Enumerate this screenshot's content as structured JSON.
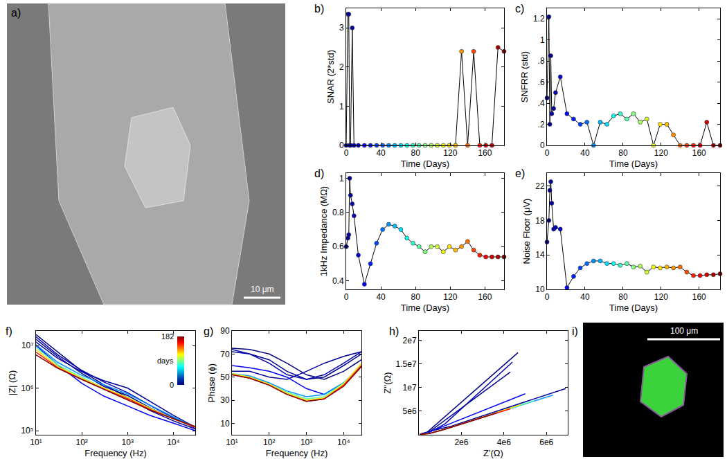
{
  "chart_data": [
    {
      "panel": "b)",
      "type": "line",
      "x_label": "Time (Days)",
      "y_label": "SNAR (2*std)",
      "x": [
        0,
        2,
        3,
        4,
        5,
        7,
        9,
        14,
        21,
        28,
        35,
        42,
        49,
        56,
        63,
        70,
        77,
        84,
        91,
        98,
        105,
        112,
        119,
        126,
        133,
        140,
        147,
        154,
        161,
        168,
        175,
        182
      ],
      "values": [
        0,
        3.35,
        3.35,
        0,
        0,
        3.0,
        0,
        0,
        0,
        0,
        0,
        0,
        0,
        0,
        0,
        0,
        0,
        0,
        0,
        0,
        0,
        0,
        0,
        0,
        2.4,
        0,
        2.4,
        0,
        0,
        0,
        2.5,
        2.4
      ],
      "color": "#000000",
      "marker": "circle",
      "colors": [
        "#000080",
        "#00008b",
        "#000090",
        "#000096",
        "#00009c",
        "#0000a7",
        "#0000b2",
        "#0000ce",
        "#0000f5",
        "#001dff",
        "#0045ff",
        "#006cff",
        "#0093ff",
        "#00baff",
        "#00e1ff",
        "#0afff5",
        "#31ffce",
        "#58ffa7",
        "#80ff80",
        "#a7ff58",
        "#ceff31",
        "#f5ff0a",
        "#ffe100",
        "#ffba00",
        "#ff9300",
        "#ff6c00",
        "#ff4500",
        "#ff1d00",
        "#f50000",
        "#ce0000",
        "#a70000",
        "#800000"
      ],
      "xlim": [
        0,
        182
      ],
      "xticks": [
        0,
        40,
        80,
        120,
        160
      ],
      "ylim": [
        0,
        3.5
      ],
      "yticks": [
        0,
        1,
        2,
        3
      ]
    },
    {
      "panel": "c)",
      "type": "line",
      "x_label": "Time (Days)",
      "y_label": "SNFRR (std)",
      "x": [
        0,
        2,
        3,
        4,
        5,
        7,
        9,
        14,
        21,
        28,
        35,
        42,
        49,
        56,
        63,
        70,
        77,
        84,
        91,
        98,
        105,
        112,
        119,
        126,
        133,
        140,
        147,
        154,
        161,
        168,
        175,
        182
      ],
      "values": [
        0.45,
        1.22,
        0.2,
        0.85,
        0.3,
        0.35,
        0.5,
        0.65,
        0.3,
        0.25,
        0.2,
        0.22,
        0,
        0.22,
        0.2,
        0.28,
        0.3,
        0.25,
        0.3,
        0.22,
        0.25,
        0,
        0.2,
        0.2,
        0.1,
        0,
        0,
        0,
        0,
        0.22,
        0,
        0
      ],
      "color": "#000000",
      "marker": "circle",
      "colors": [
        "#000080",
        "#00008b",
        "#000090",
        "#000096",
        "#00009c",
        "#0000a7",
        "#0000b2",
        "#0000ce",
        "#0000f5",
        "#001dff",
        "#0045ff",
        "#006cff",
        "#0093ff",
        "#00baff",
        "#00e1ff",
        "#0afff5",
        "#31ffce",
        "#58ffa7",
        "#80ff80",
        "#a7ff58",
        "#ceff31",
        "#f5ff0a",
        "#ffe100",
        "#ffba00",
        "#ff9300",
        "#ff6c00",
        "#ff4500",
        "#ff1d00",
        "#f50000",
        "#ce0000",
        "#a70000",
        "#800000"
      ],
      "xlim": [
        0,
        182
      ],
      "xticks": [
        0,
        40,
        80,
        120,
        160
      ],
      "ylim": [
        0,
        1.3
      ],
      "yticks": [
        0,
        {
          "value": 0.2,
          "label": ".2"
        },
        {
          "value": 0.4,
          "label": ".4"
        },
        {
          "value": 0.6,
          "label": ".6"
        },
        {
          "value": 0.8,
          "label": ".8"
        },
        1,
        1.2
      ]
    },
    {
      "panel": "d)",
      "type": "line",
      "x_label": "Time (Days)",
      "y_label": "1kHz Impedance (MΩ)",
      "x": [
        0,
        2,
        3,
        4,
        5,
        7,
        9,
        14,
        21,
        28,
        35,
        42,
        49,
        56,
        63,
        70,
        77,
        84,
        91,
        98,
        105,
        112,
        119,
        126,
        133,
        140,
        147,
        154,
        161,
        168,
        175,
        182
      ],
      "values": [
        0.6,
        0.65,
        0.67,
        1.0,
        0.9,
        0.85,
        0.78,
        0.55,
        0.38,
        0.5,
        0.62,
        0.7,
        0.73,
        0.72,
        0.7,
        0.65,
        0.62,
        0.6,
        0.57,
        0.6,
        0.6,
        0.57,
        0.6,
        0.58,
        0.6,
        0.63,
        0.58,
        0.55,
        0.54,
        0.54,
        0.54,
        0.54
      ],
      "color": "#000000",
      "marker": "circle",
      "colors": [
        "#000080",
        "#00008b",
        "#000090",
        "#000096",
        "#00009c",
        "#0000a7",
        "#0000b2",
        "#0000ce",
        "#0000f5",
        "#001dff",
        "#0045ff",
        "#006cff",
        "#0093ff",
        "#00baff",
        "#00e1ff",
        "#0afff5",
        "#31ffce",
        "#58ffa7",
        "#80ff80",
        "#a7ff58",
        "#ceff31",
        "#f5ff0a",
        "#ffe100",
        "#ffba00",
        "#ff9300",
        "#ff6c00",
        "#ff4500",
        "#ff1d00",
        "#f50000",
        "#ce0000",
        "#a70000",
        "#800000"
      ],
      "xlim": [
        0,
        182
      ],
      "xticks": [
        0,
        40,
        80,
        120,
        160
      ],
      "ylim": [
        0.35,
        1.03
      ],
      "yticks": [
        0.4,
        0.6,
        0.8,
        1
      ]
    },
    {
      "panel": "e)",
      "type": "line",
      "x_label": "Time (Days)",
      "y_label": "Noise Floor (μV)",
      "x": [
        0,
        2,
        3,
        4,
        5,
        7,
        9,
        14,
        21,
        28,
        35,
        42,
        49,
        56,
        63,
        70,
        77,
        84,
        91,
        98,
        105,
        112,
        119,
        126,
        133,
        140,
        147,
        154,
        161,
        168,
        175,
        182
      ],
      "values": [
        15.5,
        18,
        21.5,
        22.5,
        20,
        17,
        17.2,
        17,
        10.2,
        11.5,
        12.5,
        13,
        13.3,
        13.3,
        13,
        13,
        12.8,
        13,
        12.6,
        12.7,
        12,
        12.6,
        12.5,
        12.6,
        12.5,
        12.6,
        12,
        11.6,
        11.6,
        11.7,
        11.7,
        11.8
      ],
      "color": "#000000",
      "marker": "circle",
      "colors": [
        "#000080",
        "#00008b",
        "#000090",
        "#000096",
        "#00009c",
        "#0000a7",
        "#0000b2",
        "#0000ce",
        "#0000f5",
        "#001dff",
        "#0045ff",
        "#006cff",
        "#0093ff",
        "#00baff",
        "#00e1ff",
        "#0afff5",
        "#31ffce",
        "#58ffa7",
        "#80ff80",
        "#a7ff58",
        "#ceff31",
        "#f5ff0a",
        "#ffe100",
        "#ffba00",
        "#ff9300",
        "#ff6c00",
        "#ff4500",
        "#ff1d00",
        "#f50000",
        "#ce0000",
        "#a70000",
        "#800000"
      ],
      "xlim": [
        0,
        182
      ],
      "xticks": [
        0,
        40,
        80,
        120,
        160
      ],
      "ylim": [
        10,
        23.5
      ],
      "yticks": [
        10,
        14,
        18,
        22
      ]
    },
    {
      "panel": "f)",
      "type": "line",
      "log": true,
      "x_label": "Frequency (Hz)",
      "y_label": "|Z| (Ω)",
      "x": [
        10,
        30,
        100,
        300,
        1000,
        3000,
        10000,
        30000
      ],
      "series": [
        {
          "color": "#000080",
          "values": [
            18000000,
            7000000,
            2500000,
            1200000,
            600000,
            300000,
            170000,
            110000
          ]
        },
        {
          "color": "#000090",
          "values": [
            14000000,
            5500000,
            2200000,
            1100000,
            670000,
            350000,
            190000,
            120000
          ]
        },
        {
          "color": "#00009c",
          "values": [
            12000000,
            5000000,
            2400000,
            1500000,
            1000000,
            500000,
            230000,
            120000
          ]
        },
        {
          "color": "#0000b2",
          "values": [
            16000000,
            6000000,
            2600000,
            1400000,
            780000,
            400000,
            200000,
            115000
          ]
        },
        {
          "color": "#0000f5",
          "values": [
            10000000,
            3500000,
            1300000,
            650000,
            380000,
            230000,
            150000,
            100000
          ]
        },
        {
          "color": "#0093ff",
          "values": [
            10500000,
            4000000,
            2000000,
            1200000,
            730000,
            400000,
            210000,
            120000
          ]
        },
        {
          "color": "#58ffa7",
          "values": [
            9000000,
            3500000,
            1800000,
            1000000,
            600000,
            340000,
            190000,
            120000
          ]
        },
        {
          "color": "#ffe100",
          "values": [
            8000000,
            3200000,
            1700000,
            1000000,
            600000,
            340000,
            190000,
            120000
          ]
        },
        {
          "color": "#ff1d00",
          "values": [
            7000000,
            3000000,
            1600000,
            950000,
            560000,
            320000,
            190000,
            120000
          ]
        },
        {
          "color": "#800000",
          "values": [
            6000000,
            2900000,
            1600000,
            940000,
            540000,
            310000,
            190000,
            125000
          ]
        }
      ],
      "colorbar": {
        "range": [
          0,
          182
        ],
        "ticks": [
          0,
          182
        ],
        "label": "days"
      },
      "xlim": [
        10,
        30000
      ],
      "ylim": [
        80000,
        22000000
      ],
      "xticks": [
        {
          "value": 10,
          "label": "10¹"
        },
        {
          "value": 100,
          "label": "10²"
        },
        {
          "value": 1000,
          "label": "10³"
        },
        {
          "value": 10000,
          "label": "10⁴"
        }
      ],
      "yticks": [
        {
          "value": 100000,
          "label": "10⁵"
        },
        {
          "value": 1000000,
          "label": "10⁶"
        },
        {
          "value": 10000000,
          "label": "10⁷"
        }
      ]
    },
    {
      "panel": "g)",
      "type": "line",
      "log": "x",
      "x_label": "Frequency (Hz)",
      "y_label": "Phase (ϕ)",
      "x": [
        10,
        30,
        100,
        300,
        1000,
        3000,
        10000,
        30000
      ],
      "series": [
        {
          "color": "#000080",
          "values": [
            75,
            74,
            70,
            62,
            52,
            48,
            55,
            65
          ]
        },
        {
          "color": "#000090",
          "values": [
            72,
            70,
            65,
            55,
            48,
            50,
            60,
            70
          ]
        },
        {
          "color": "#00009c",
          "values": [
            55,
            55,
            50,
            48,
            55,
            62,
            68,
            72
          ]
        },
        {
          "color": "#0000b2",
          "values": [
            74,
            70,
            62,
            52,
            48,
            52,
            62,
            72
          ]
        },
        {
          "color": "#0000f5",
          "values": [
            60,
            58,
            55,
            50,
            40,
            35,
            45,
            60
          ]
        },
        {
          "color": "#0093ff",
          "values": [
            53,
            51,
            45,
            38,
            33,
            35,
            45,
            60
          ]
        },
        {
          "color": "#58ffa7",
          "values": [
            53,
            50,
            44,
            37,
            31,
            33,
            45,
            60
          ]
        },
        {
          "color": "#ffe100",
          "values": [
            53,
            50,
            44,
            36,
            30,
            32,
            44,
            62
          ]
        },
        {
          "color": "#ff1d00",
          "values": [
            52,
            49,
            43,
            35,
            29,
            31,
            43,
            60
          ]
        },
        {
          "color": "#800000",
          "values": [
            52,
            49,
            43,
            35,
            29,
            31,
            42,
            59
          ]
        }
      ],
      "xlim": [
        10,
        30000
      ],
      "ylim": [
        0,
        90
      ],
      "xticks": [
        {
          "value": 10,
          "label": "10¹"
        },
        {
          "value": 100,
          "label": "10²"
        },
        {
          "value": 1000,
          "label": "10³"
        },
        {
          "value": 10000,
          "label": "10⁴"
        }
      ],
      "yticks": [
        10,
        30,
        50,
        70,
        90
      ]
    },
    {
      "panel": "h)",
      "type": "line",
      "x_label": "Z'(Ω)",
      "y_label": "Z''(Ω)",
      "series": [
        {
          "color": "#000080",
          "x": [
            4660000,
            860000,
            370000,
            46000
          ],
          "values": [
            17400000,
            2350000,
            470000,
            100000
          ]
        },
        {
          "color": "#000090",
          "x": [
            4300000,
            930000,
            450000,
            41000
          ],
          "values": [
            13300000,
            1990000,
            500000,
            113000
          ]
        },
        {
          "color": "#00009c",
          "x": [
            6900000,
            1540000,
            570000,
            37000
          ],
          "values": [
            9800000,
            1840000,
            820000,
            114000
          ]
        },
        {
          "color": "#0000b2",
          "x": [
            4400000,
            1220000,
            520000,
            36000
          ],
          "values": [
            15400000,
            2300000,
            580000,
            109000
          ]
        },
        {
          "color": "#0000f5",
          "x": [
            5000000,
            750000,
            290000,
            50000
          ],
          "values": [
            8700000,
            1070000,
            240000,
            87000
          ]
        },
        {
          "color": "#0093ff",
          "x": [
            6300000,
            1410000,
            610000,
            60000
          ],
          "values": [
            8400000,
            1410000,
            400000,
            104000
          ]
        },
        {
          "color": "#58ffa7",
          "x": [
            5400000,
            1290000,
            510000,
            60000
          ],
          "values": [
            7200000,
            1250000,
            310000,
            104000
          ]
        },
        {
          "color": "#ffe100",
          "x": [
            4800000,
            1220000,
            520000,
            60000
          ],
          "values": [
            6400000,
            1180000,
            300000,
            104000
          ]
        },
        {
          "color": "#ff1d00",
          "x": [
            4300000,
            1170000,
            490000,
            60000
          ],
          "values": [
            5500000,
            1090000,
            270000,
            104000
          ]
        },
        {
          "color": "#800000",
          "x": [
            3700000,
            1170000,
            470000,
            62000
          ],
          "values": [
            4700000,
            1090000,
            260000,
            107000
          ]
        }
      ],
      "xlim": [
        0,
        7000000
      ],
      "ylim": [
        0,
        22000000
      ],
      "xticks": [
        {
          "value": 2000000,
          "label": "2e6"
        },
        {
          "value": 4000000,
          "label": "4e6"
        },
        {
          "value": 6000000,
          "label": "6e6"
        }
      ],
      "yticks": [
        {
          "value": 5000000,
          "label": "5e6"
        },
        {
          "value": 10000000,
          "label": "1e7"
        },
        {
          "value": 15000000,
          "label": "1.5e7"
        },
        {
          "value": 20000000,
          "label": "2e7"
        }
      ]
    }
  ],
  "images": [
    {
      "label": "a)",
      "scale_bar": "10 μm"
    },
    {
      "label": "i)",
      "scale_bar": "100 μm"
    }
  ]
}
